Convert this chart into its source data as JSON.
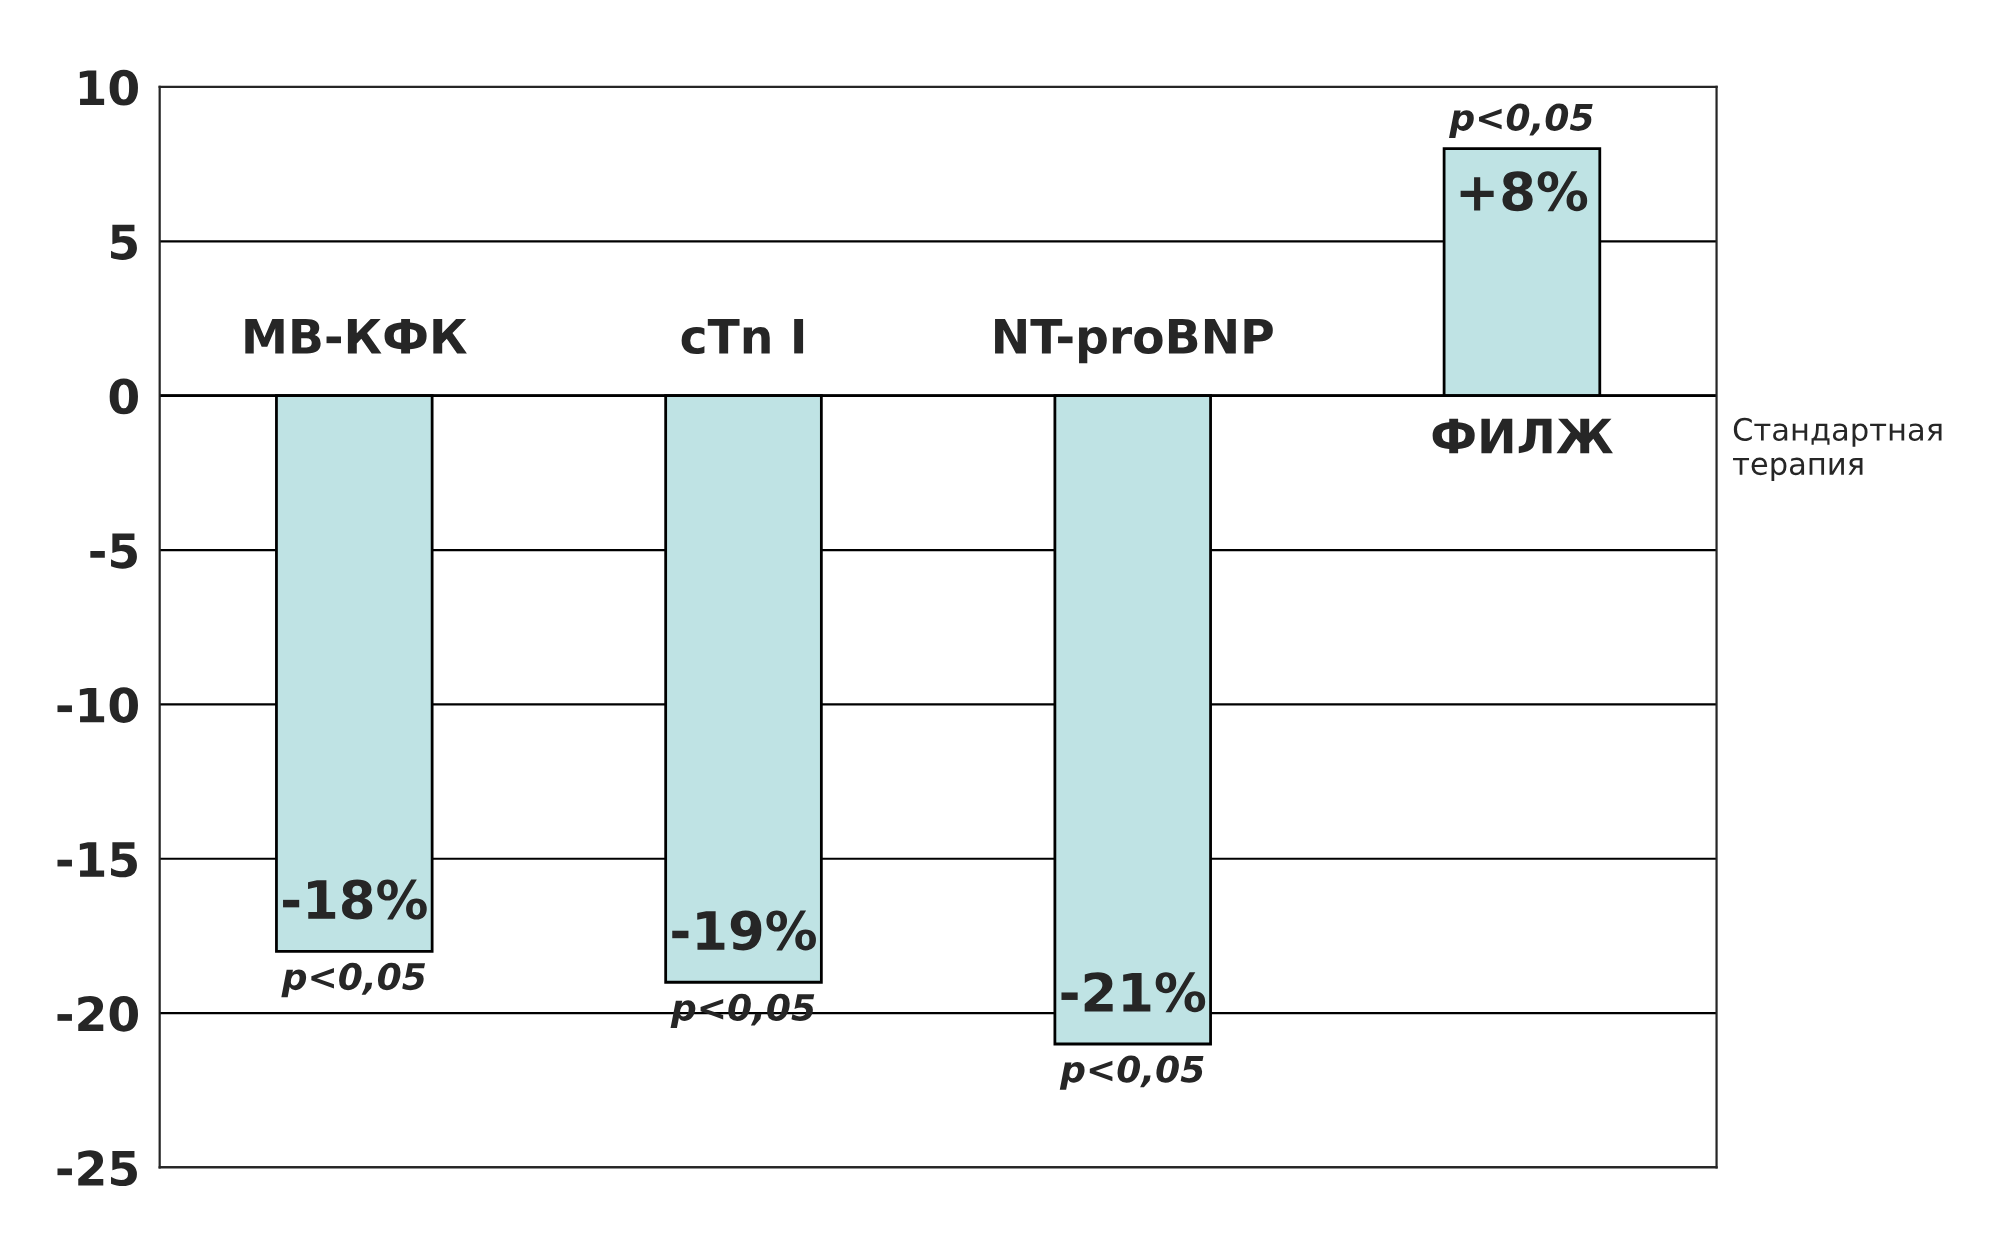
{
  "chart_data": {
    "type": "bar",
    "categories": [
      "МВ-КФК",
      "cTn I",
      "NT-proBNP",
      "ФИЛЖ"
    ],
    "values": [
      -18,
      -19,
      -21,
      8
    ],
    "value_labels": [
      "-18%",
      "-19%",
      "-21%",
      "+8%"
    ],
    "color": "#bfe3e4",
    "ylim": [
      -25,
      10
    ],
    "yticks": [
      -25,
      -20,
      -15,
      -10,
      -5,
      0,
      5,
      10
    ],
    "grid": "y",
    "annotations": [
      {
        "text": "p<0,05",
        "x": "МВ-КФК",
        "y": -18
      },
      {
        "text": "p<0,05",
        "x": "cTn I",
        "y": -19
      },
      {
        "text": "p<0,05",
        "x": "NT-proBNP",
        "y": -21
      },
      {
        "text": "p<0,05",
        "x": "ФИЛЖ",
        "y": 8
      },
      "Стандартная терапия"
    ]
  }
}
